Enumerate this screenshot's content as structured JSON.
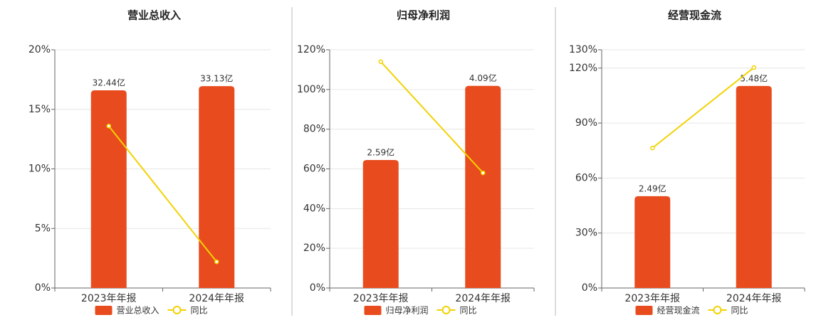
{
  "chart_data": [
    {
      "type": "bar",
      "title": "营业总收入",
      "categories": [
        "2023年年报",
        "2024年年报"
      ],
      "series": [
        {
          "name": "营业总收入",
          "color": "#e84c1e",
          "axis": "y2",
          "values": [
            32.44,
            33.13
          ],
          "value_labels": [
            "32.44亿",
            "33.13亿"
          ]
        },
        {
          "name": "同比",
          "color": "#f2d200",
          "axis": "y",
          "type": "line",
          "values": [
            13.6,
            2.2
          ]
        }
      ],
      "ylim": [
        0,
        20
      ],
      "yticks": [
        {
          "value": 0,
          "label": "0%"
        },
        {
          "value": 5,
          "label": "5%"
        },
        {
          "value": 10,
          "label": "10%"
        },
        {
          "value": 15,
          "label": "15%"
        },
        {
          "value": 20,
          "label": "20%"
        }
      ],
      "y2lim": [
        0,
        39.1
      ],
      "grid": true,
      "legend": "bottom"
    },
    {
      "type": "bar",
      "title": "归母净利润",
      "categories": [
        "2023年年报",
        "2024年年报"
      ],
      "series": [
        {
          "name": "归母净利润",
          "color": "#e84c1e",
          "axis": "y2",
          "values": [
            2.59,
            4.09
          ],
          "value_labels": [
            "2.59亿",
            "4.09亿"
          ]
        },
        {
          "name": "同比",
          "color": "#f2d200",
          "axis": "y",
          "type": "line",
          "values": [
            114,
            58
          ]
        }
      ],
      "ylim": [
        0,
        120
      ],
      "yticks": [
        {
          "value": 0,
          "label": "0%"
        },
        {
          "value": 20,
          "label": "20%"
        },
        {
          "value": 40,
          "label": "40%"
        },
        {
          "value": 60,
          "label": "60%"
        },
        {
          "value": 80,
          "label": "80%"
        },
        {
          "value": 100,
          "label": "100%"
        },
        {
          "value": 120,
          "label": "120%"
        }
      ],
      "y2lim": [
        0,
        4.82
      ],
      "grid": true,
      "legend": "bottom"
    },
    {
      "type": "bar",
      "title": "经营现金流",
      "categories": [
        "2023年年报",
        "2024年年报"
      ],
      "series": [
        {
          "name": "经营现金流",
          "color": "#e84c1e",
          "axis": "y2",
          "values": [
            2.49,
            5.48
          ],
          "value_labels": [
            "2.49亿",
            "5.48亿"
          ]
        },
        {
          "name": "同比",
          "color": "#f2d200",
          "axis": "y",
          "type": "line",
          "values": [
            76.4,
            120.3
          ]
        }
      ],
      "ylim": [
        0,
        130
      ],
      "yticks": [
        {
          "value": 0,
          "label": "0%"
        },
        {
          "value": 30,
          "label": "30%"
        },
        {
          "value": 60,
          "label": "60%"
        },
        {
          "value": 90,
          "label": "90%"
        },
        {
          "value": 120,
          "label": "120%"
        },
        {
          "value": 130,
          "label": "130%"
        }
      ],
      "y2lim": [
        0,
        6.46
      ],
      "grid": true,
      "legend": "bottom"
    }
  ]
}
